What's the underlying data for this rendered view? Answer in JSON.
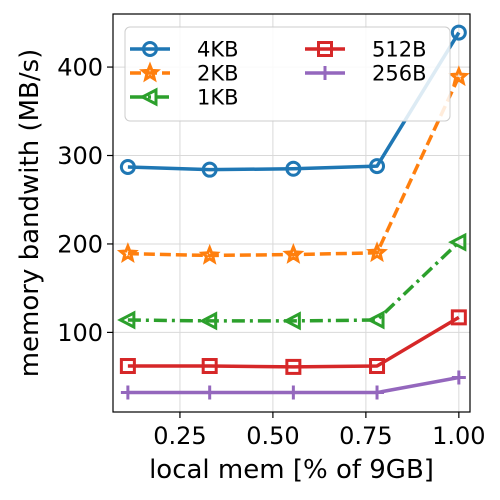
{
  "chart_data": {
    "type": "line",
    "xlabel": "local mem [% of 9GB]",
    "ylabel": "memory bandwith (MB/s)",
    "xlim": [
      0.07,
      1.03
    ],
    "ylim": [
      10,
      460
    ],
    "xticks": [
      0.25,
      0.5,
      0.75,
      1.0
    ],
    "xtick_labels": [
      "0.25",
      "0.50",
      "0.75",
      "1.00"
    ],
    "yticks": [
      100,
      200,
      300,
      400
    ],
    "ytick_labels": [
      "100",
      "200",
      "300",
      "400"
    ],
    "grid": true,
    "legend": {
      "placement": "top",
      "columns": 2
    },
    "x": [
      0.11,
      0.33,
      0.555,
      0.78,
      1.0
    ],
    "series": [
      {
        "name": "4KB",
        "values": [
          287,
          284,
          285,
          288,
          439
        ],
        "color": "#1f77b4",
        "line_style": "solid",
        "marker": "circle"
      },
      {
        "name": "2KB",
        "values": [
          189,
          187,
          188,
          190,
          389
        ],
        "color": "#ff7f0e",
        "line_style": "dashed",
        "marker": "star"
      },
      {
        "name": "1KB",
        "values": [
          114,
          113,
          113,
          114,
          202
        ],
        "color": "#2ca02c",
        "line_style": "dashdot",
        "marker": "triangle-left"
      },
      {
        "name": "512B",
        "values": [
          62,
          62,
          61,
          62,
          117
        ],
        "color": "#d62728",
        "line_style": "solid",
        "marker": "square"
      },
      {
        "name": "256B",
        "values": [
          32,
          32,
          32,
          32,
          49
        ],
        "color": "#9467bd",
        "line_style": "solid",
        "marker": "plus"
      }
    ]
  }
}
